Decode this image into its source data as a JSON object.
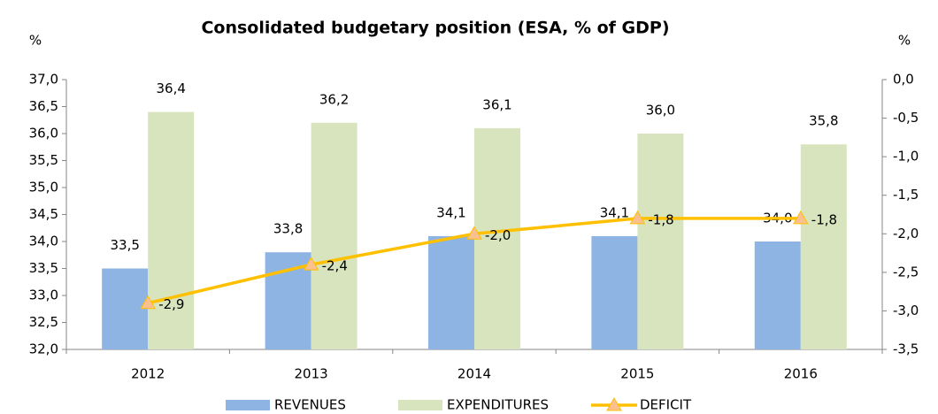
{
  "chart_data": {
    "type": "bar",
    "title": "Consolidated budgetary position (ESA, % of GDP)",
    "y_label": "%",
    "y2_label": "%",
    "categories": [
      "2012",
      "2013",
      "2014",
      "2015",
      "2016"
    ],
    "series": [
      {
        "name": "REVENUES",
        "type": "bar",
        "color": "#8eb4e3",
        "values": [
          33.5,
          33.8,
          34.1,
          34.1,
          34.0
        ],
        "value_labels": [
          "33,5",
          "33,8",
          "34,1",
          "34,1",
          "34,0"
        ]
      },
      {
        "name": "EXPENDITURES",
        "type": "bar",
        "color": "#d7e4bd",
        "values": [
          36.4,
          36.2,
          36.1,
          36.0,
          35.8
        ],
        "value_labels": [
          "36,4",
          "36,2",
          "36,1",
          "36,0",
          "35,8"
        ]
      },
      {
        "name": "DEFICIT",
        "type": "line",
        "axis": "y2",
        "color": "#ffc000",
        "marker_color": "#fac090",
        "values": [
          -2.9,
          -2.4,
          -2.0,
          -1.8,
          -1.8
        ],
        "value_labels": [
          "-2,9",
          "-2,4",
          "-2,0",
          "-1,8",
          "-1,8"
        ]
      }
    ],
    "ylim": [
      32,
      37
    ],
    "yticks": [
      {
        "value": 32,
        "label": "32,0"
      },
      {
        "value": 32.5,
        "label": "32,5"
      },
      {
        "value": 33,
        "label": "33,0"
      },
      {
        "value": 33.5,
        "label": "33,5"
      },
      {
        "value": 34,
        "label": "34,0"
      },
      {
        "value": 34.5,
        "label": "34,5"
      },
      {
        "value": 35,
        "label": "35,0"
      },
      {
        "value": 35.5,
        "label": "35,5"
      },
      {
        "value": 36,
        "label": "36,0"
      },
      {
        "value": 36.5,
        "label": "36,5"
      },
      {
        "value": 37,
        "label": "37,0"
      }
    ],
    "y2lim": [
      -3.5,
      0
    ],
    "y2ticks": [
      {
        "value": -3.5,
        "label": "-3,5"
      },
      {
        "value": -3,
        "label": "-3,0"
      },
      {
        "value": -2.5,
        "label": "-2,5"
      },
      {
        "value": -2,
        "label": "-2,0"
      },
      {
        "value": -1.5,
        "label": "-1,5"
      },
      {
        "value": -1,
        "label": "-1,0"
      },
      {
        "value": -0.5,
        "label": "-0,5"
      },
      {
        "value": 0,
        "label": "0,0"
      }
    ],
    "grid": false,
    "legend": "bottom"
  }
}
